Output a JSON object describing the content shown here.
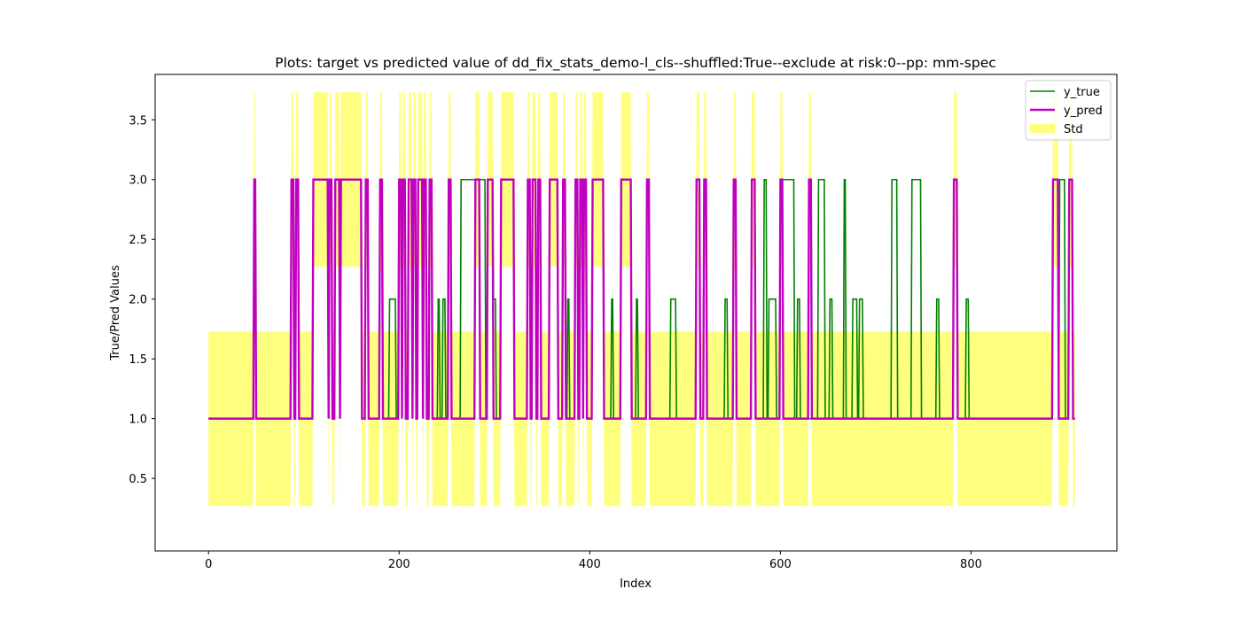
{
  "chart_data": {
    "type": "line",
    "title": "Plots: target vs predicted value of dd_fix_stats_demo-l_cls--shuffled:True--exclude at risk:0--pp: mm-spec",
    "xlabel": "Index",
    "ylabel": "True/Pred Values",
    "xlim": [
      -56,
      953
    ],
    "ylim": [
      -0.107,
      3.88
    ],
    "xticks": [
      0,
      200,
      400,
      600,
      800
    ],
    "xtick_labels": [
      "0",
      "200",
      "400",
      "600",
      "800"
    ],
    "yticks": [
      0.5,
      1.0,
      1.5,
      2.0,
      2.5,
      3.0,
      3.5
    ],
    "ytick_labels": [
      "0.5",
      "1.0",
      "1.5",
      "2.0",
      "2.5",
      "3.0",
      "3.5"
    ],
    "grid": false,
    "legend_position": "top-right",
    "n_points": 910,
    "series": [
      {
        "name": "y_true",
        "color": "#008000",
        "default": 1,
        "segments": [
          [
            48,
            49,
            3
          ],
          [
            87,
            89,
            3
          ],
          [
            92,
            94,
            3
          ],
          [
            110,
            125,
            3
          ],
          [
            127,
            129,
            3
          ],
          [
            133,
            137,
            3
          ],
          [
            139,
            160,
            3
          ],
          [
            165,
            167,
            3
          ],
          [
            180,
            182,
            3
          ],
          [
            190,
            196,
            2
          ],
          [
            200,
            202,
            3
          ],
          [
            204,
            206,
            3
          ],
          [
            210,
            213,
            3
          ],
          [
            215,
            217,
            3
          ],
          [
            220,
            224,
            3
          ],
          [
            226,
            228,
            3
          ],
          [
            232,
            234,
            3
          ],
          [
            241,
            242,
            2
          ],
          [
            246,
            248,
            2
          ],
          [
            252,
            254,
            3
          ],
          [
            265,
            290,
            3
          ],
          [
            293,
            298,
            3
          ],
          [
            299,
            301,
            2
          ],
          [
            307,
            320,
            3
          ],
          [
            335,
            337,
            3
          ],
          [
            340,
            343,
            3
          ],
          [
            346,
            348,
            3
          ],
          [
            358,
            366,
            3
          ],
          [
            372,
            374,
            3
          ],
          [
            377,
            378,
            2
          ],
          [
            385,
            387,
            3
          ],
          [
            390,
            392,
            3
          ],
          [
            394,
            396,
            3
          ],
          [
            403,
            414,
            3
          ],
          [
            423,
            424,
            2
          ],
          [
            433,
            443,
            3
          ],
          [
            449,
            450,
            2
          ],
          [
            460,
            462,
            3
          ],
          [
            485,
            490,
            2
          ],
          [
            512,
            515,
            3
          ],
          [
            520,
            522,
            3
          ],
          [
            542,
            544,
            2
          ],
          [
            551,
            553,
            3
          ],
          [
            570,
            573,
            3
          ],
          [
            583,
            585,
            3
          ],
          [
            588,
            595,
            2
          ],
          [
            600,
            614,
            3
          ],
          [
            618,
            620,
            2
          ],
          [
            640,
            646,
            3
          ],
          [
            652,
            654,
            2
          ],
          [
            667,
            668,
            3
          ],
          [
            676,
            680,
            2
          ],
          [
            683,
            686,
            2
          ],
          [
            717,
            722,
            3
          ],
          [
            738,
            747,
            3
          ],
          [
            764,
            766,
            2
          ],
          [
            782,
            785,
            3
          ],
          [
            795,
            797,
            2
          ],
          [
            886,
            891,
            3
          ],
          [
            893,
            898,
            3
          ],
          [
            903,
            906,
            3
          ]
        ]
      },
      {
        "name": "y_pred",
        "color": "#bf00bf",
        "default": 1,
        "segments": [
          [
            48,
            49,
            3
          ],
          [
            87,
            89,
            3
          ],
          [
            92,
            94,
            3
          ],
          [
            110,
            125,
            3
          ],
          [
            127,
            129,
            3
          ],
          [
            133,
            137,
            3
          ],
          [
            139,
            160,
            3
          ],
          [
            165,
            167,
            3
          ],
          [
            180,
            182,
            3
          ],
          [
            200,
            202,
            3
          ],
          [
            204,
            206,
            3
          ],
          [
            210,
            213,
            3
          ],
          [
            215,
            217,
            3
          ],
          [
            220,
            224,
            3
          ],
          [
            226,
            228,
            3
          ],
          [
            232,
            234,
            3
          ],
          [
            252,
            254,
            3
          ],
          [
            280,
            284,
            3
          ],
          [
            293,
            298,
            3
          ],
          [
            307,
            320,
            3
          ],
          [
            335,
            337,
            3
          ],
          [
            340,
            343,
            3
          ],
          [
            346,
            348,
            3
          ],
          [
            358,
            366,
            3
          ],
          [
            372,
            374,
            3
          ],
          [
            385,
            387,
            3
          ],
          [
            390,
            392,
            3
          ],
          [
            394,
            396,
            3
          ],
          [
            403,
            414,
            3
          ],
          [
            433,
            443,
            3
          ],
          [
            460,
            462,
            3
          ],
          [
            512,
            515,
            3
          ],
          [
            520,
            522,
            3
          ],
          [
            551,
            553,
            3
          ],
          [
            570,
            573,
            3
          ],
          [
            600,
            602,
            3
          ],
          [
            630,
            632,
            3
          ],
          [
            782,
            785,
            3
          ],
          [
            886,
            891,
            3
          ],
          [
            903,
            906,
            3
          ]
        ]
      }
    ],
    "std_band": {
      "name": "Std",
      "color": "#ffff00",
      "opacity": 0.5,
      "base_lower": 0.27,
      "base_upper": 1.73,
      "high_lower": 2.27,
      "high_upper": 3.73
    }
  }
}
